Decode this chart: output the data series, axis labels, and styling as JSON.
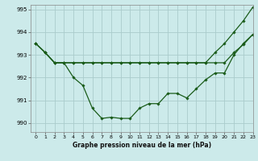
{
  "title": "Graphe pression niveau de la mer (hPa)",
  "background_color": "#cceaea",
  "grid_color": "#aacccc",
  "line_color": "#1a5c1a",
  "marker_color": "#1a5c1a",
  "xlim": [
    -0.5,
    23
  ],
  "ylim": [
    989.6,
    995.2
  ],
  "yticks": [
    990,
    991,
    992,
    993,
    994,
    995
  ],
  "xticks": [
    0,
    1,
    2,
    3,
    4,
    5,
    6,
    7,
    8,
    9,
    10,
    11,
    12,
    13,
    14,
    15,
    16,
    17,
    18,
    19,
    20,
    21,
    22,
    23
  ],
  "series1": [
    993.5,
    993.1,
    992.65,
    992.65,
    992.0,
    991.65,
    990.65,
    990.2,
    990.25,
    990.2,
    990.2,
    990.65,
    990.85,
    990.85,
    991.3,
    991.3,
    991.1,
    991.5,
    991.9,
    992.2,
    992.2,
    993.0,
    993.5,
    993.9
  ],
  "series2": [
    993.5,
    993.1,
    992.65,
    992.65,
    992.65,
    992.65,
    992.65,
    992.65,
    992.65,
    992.65,
    992.65,
    992.65,
    992.65,
    992.65,
    992.65,
    992.65,
    992.65,
    992.65,
    992.65,
    992.65,
    992.65,
    993.1,
    993.45,
    993.9
  ],
  "series3": [
    993.5,
    993.1,
    992.65,
    992.65,
    992.65,
    992.65,
    992.65,
    992.65,
    992.65,
    992.65,
    992.65,
    992.65,
    992.65,
    992.65,
    992.65,
    992.65,
    992.65,
    992.65,
    992.65,
    993.1,
    993.5,
    994.0,
    994.5,
    995.1
  ]
}
